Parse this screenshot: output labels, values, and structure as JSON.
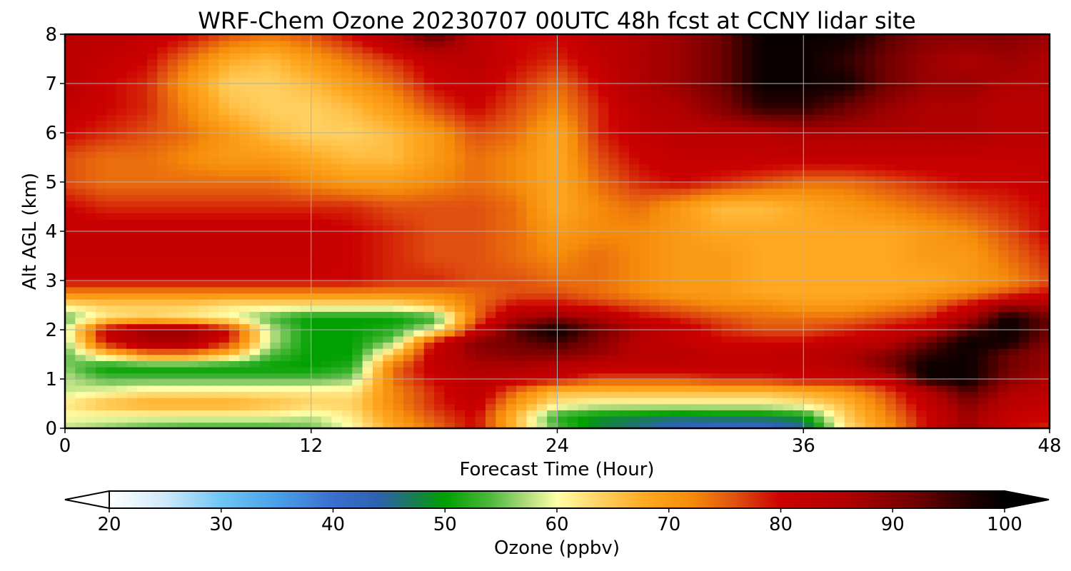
{
  "chart_data": {
    "type": "heatmap",
    "title": "WRF-Chem Ozone  20230707 00UTC 48h fcst at CCNY lidar site",
    "xlabel": "Forecast Time (Hour)",
    "ylabel": "Alt AGL (km)",
    "xlim": [
      0,
      48
    ],
    "ylim": [
      0,
      8
    ],
    "x_ticks": [
      0,
      12,
      24,
      36,
      48
    ],
    "y_ticks": [
      0,
      1,
      2,
      3,
      4,
      5,
      6,
      7,
      8
    ],
    "grid": true,
    "colorbar": {
      "label": "Ozone  (ppbv)",
      "range": [
        20,
        100
      ],
      "ticks": [
        20,
        30,
        40,
        50,
        60,
        70,
        80,
        90,
        100
      ],
      "extend": "both",
      "stops": [
        {
          "value": 20,
          "color": "#ffffff"
        },
        {
          "value": 25,
          "color": "#cfe9fa"
        },
        {
          "value": 30,
          "color": "#6ec6f5"
        },
        {
          "value": 35,
          "color": "#4aa0e8"
        },
        {
          "value": 40,
          "color": "#3a6fce"
        },
        {
          "value": 44,
          "color": "#2d62b0"
        },
        {
          "value": 47,
          "color": "#1a7a5a"
        },
        {
          "value": 50,
          "color": "#00a000"
        },
        {
          "value": 54,
          "color": "#4cb83c"
        },
        {
          "value": 57,
          "color": "#a8d878"
        },
        {
          "value": 60,
          "color": "#ffffa8"
        },
        {
          "value": 64,
          "color": "#ffd060"
        },
        {
          "value": 68,
          "color": "#ffa820"
        },
        {
          "value": 72,
          "color": "#f58c0a"
        },
        {
          "value": 76,
          "color": "#e05010"
        },
        {
          "value": 80,
          "color": "#cc0000"
        },
        {
          "value": 86,
          "color": "#b00000"
        },
        {
          "value": 92,
          "color": "#700000"
        },
        {
          "value": 97,
          "color": "#200000"
        },
        {
          "value": 100,
          "color": "#000000"
        }
      ]
    },
    "x": [
      0,
      2,
      4,
      6,
      8,
      10,
      12,
      14,
      16,
      18,
      20,
      22,
      24,
      26,
      28,
      30,
      32,
      34,
      36,
      38,
      40,
      42,
      44,
      46,
      48
    ],
    "y": [
      0,
      0.25,
      0.5,
      0.75,
      1,
      1.25,
      1.5,
      1.75,
      2,
      2.25,
      2.5,
      2.75,
      3,
      3.5,
      4,
      4.5,
      5,
      5.5,
      6,
      6.5,
      7,
      7.5,
      8
    ],
    "z": [
      [
        58,
        56,
        54,
        53,
        53,
        53,
        55,
        60,
        68,
        74,
        80,
        66,
        54,
        48,
        45,
        42,
        41,
        41,
        44,
        62,
        70,
        80,
        88,
        80,
        78
      ],
      [
        60,
        60,
        60,
        60,
        60,
        60,
        58,
        62,
        70,
        76,
        80,
        66,
        52,
        49,
        48,
        47,
        48,
        48,
        50,
        64,
        72,
        80,
        88,
        82,
        80
      ],
      [
        62,
        66,
        68,
        68,
        68,
        66,
        64,
        64,
        72,
        78,
        82,
        70,
        62,
        60,
        60,
        60,
        60,
        60,
        62,
        66,
        74,
        82,
        90,
        84,
        82
      ],
      [
        58,
        60,
        62,
        62,
        62,
        62,
        62,
        62,
        72,
        78,
        84,
        74,
        66,
        66,
        66,
        66,
        66,
        66,
        68,
        70,
        76,
        84,
        94,
        86,
        84
      ],
      [
        58,
        54,
        54,
        54,
        54,
        54,
        54,
        56,
        74,
        80,
        84,
        82,
        80,
        76,
        76,
        76,
        78,
        78,
        80,
        80,
        82,
        98,
        99,
        90,
        86
      ],
      [
        56,
        50,
        50,
        50,
        50,
        50,
        50,
        52,
        74,
        82,
        86,
        86,
        84,
        82,
        82,
        82,
        82,
        82,
        82,
        84,
        90,
        99,
        99,
        92,
        88
      ],
      [
        54,
        64,
        72,
        72,
        66,
        54,
        50,
        50,
        66,
        82,
        88,
        90,
        90,
        88,
        84,
        84,
        82,
        82,
        84,
        86,
        90,
        96,
        99,
        92,
        88
      ],
      [
        56,
        80,
        86,
        86,
        78,
        58,
        50,
        50,
        56,
        80,
        90,
        92,
        95,
        90,
        84,
        82,
        80,
        80,
        80,
        82,
        84,
        92,
        99,
        98,
        90
      ],
      [
        58,
        82,
        88,
        88,
        80,
        58,
        50,
        50,
        52,
        60,
        80,
        94,
        99,
        92,
        86,
        82,
        78,
        76,
        76,
        78,
        80,
        84,
        94,
        99,
        92
      ],
      [
        54,
        62,
        64,
        62,
        60,
        54,
        50,
        50,
        50,
        52,
        74,
        86,
        90,
        86,
        80,
        78,
        76,
        74,
        74,
        74,
        76,
        78,
        86,
        99,
        92
      ],
      [
        62,
        64,
        64,
        64,
        62,
        62,
        62,
        62,
        62,
        66,
        74,
        80,
        80,
        78,
        76,
        74,
        72,
        72,
        70,
        70,
        72,
        74,
        80,
        88,
        86
      ],
      [
        72,
        72,
        72,
        72,
        72,
        72,
        72,
        72,
        72,
        72,
        74,
        76,
        76,
        74,
        72,
        70,
        70,
        68,
        68,
        68,
        68,
        70,
        72,
        76,
        80
      ],
      [
        80,
        80,
        80,
        80,
        80,
        80,
        80,
        80,
        78,
        78,
        76,
        76,
        74,
        74,
        72,
        70,
        70,
        68,
        68,
        68,
        68,
        68,
        70,
        72,
        76
      ],
      [
        82,
        82,
        82,
        82,
        82,
        82,
        82,
        80,
        78,
        76,
        76,
        74,
        72,
        74,
        72,
        70,
        70,
        68,
        68,
        68,
        68,
        70,
        70,
        74,
        78
      ],
      [
        82,
        82,
        82,
        82,
        82,
        82,
        82,
        80,
        78,
        76,
        76,
        74,
        70,
        72,
        72,
        70,
        68,
        68,
        68,
        68,
        68,
        70,
        72,
        76,
        80
      ],
      [
        80,
        78,
        78,
        78,
        78,
        78,
        78,
        78,
        76,
        76,
        76,
        74,
        68,
        72,
        74,
        70,
        66,
        66,
        68,
        70,
        72,
        74,
        76,
        78,
        80
      ],
      [
        76,
        74,
        74,
        74,
        74,
        74,
        72,
        70,
        70,
        72,
        74,
        72,
        68,
        74,
        78,
        80,
        78,
        76,
        74,
        74,
        76,
        78,
        80,
        80,
        82
      ],
      [
        76,
        74,
        74,
        72,
        70,
        70,
        68,
        66,
        66,
        70,
        74,
        72,
        68,
        76,
        80,
        82,
        82,
        82,
        82,
        82,
        82,
        82,
        82,
        82,
        82
      ],
      [
        80,
        78,
        76,
        74,
        70,
        66,
        64,
        64,
        66,
        70,
        76,
        74,
        68,
        78,
        82,
        84,
        84,
        84,
        86,
        86,
        86,
        86,
        86,
        84,
        84
      ],
      [
        82,
        80,
        78,
        72,
        66,
        64,
        64,
        66,
        70,
        76,
        80,
        76,
        72,
        78,
        84,
        86,
        90,
        96,
        96,
        92,
        88,
        86,
        86,
        84,
        84
      ],
      [
        84,
        80,
        78,
        70,
        64,
        64,
        66,
        70,
        74,
        80,
        82,
        78,
        74,
        80,
        86,
        88,
        92,
        99,
        99,
        98,
        92,
        88,
        88,
        86,
        86
      ],
      [
        84,
        82,
        80,
        74,
        68,
        66,
        70,
        74,
        78,
        82,
        84,
        80,
        78,
        82,
        86,
        88,
        92,
        99,
        99,
        96,
        92,
        88,
        86,
        88,
        86
      ],
      [
        84,
        84,
        82,
        80,
        76,
        74,
        76,
        80,
        86,
        94,
        84,
        80,
        80,
        84,
        86,
        88,
        92,
        99,
        99,
        99,
        94,
        90,
        90,
        90,
        88
      ]
    ]
  }
}
